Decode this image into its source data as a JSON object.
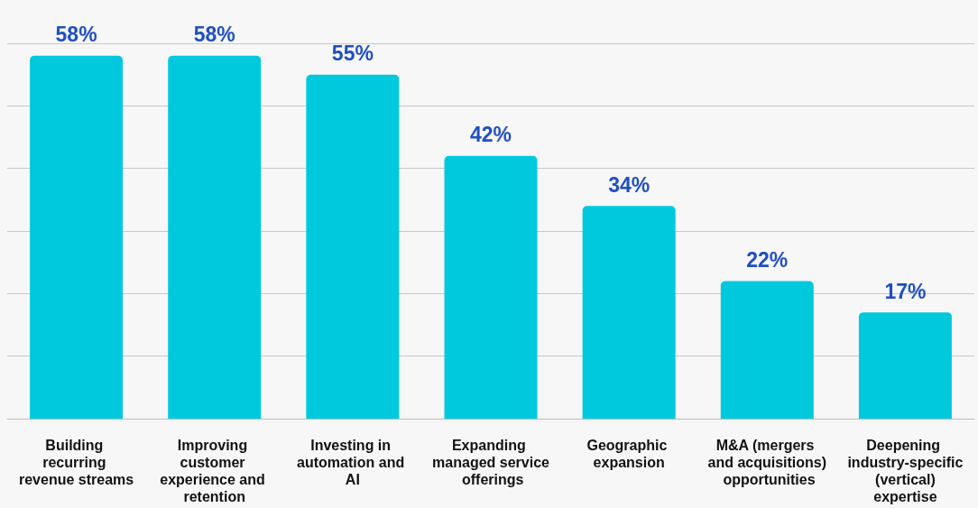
{
  "chart_data": {
    "type": "bar",
    "categories": [
      "Building recurring revenue streams",
      "Improving customer experience and retention",
      "Investing in automation and AI",
      "Expanding managed service offerings",
      "Geographic expansion",
      "M&A (mergers and acquisitions) opportunities",
      "Deepening industry-specific (vertical) expertise"
    ],
    "values": [
      58,
      58,
      55,
      42,
      34,
      22,
      17
    ],
    "value_labels": [
      "58%",
      "58%",
      "55%",
      "42%",
      "34%",
      "22%",
      "17%"
    ],
    "color": "#00c9dd",
    "ylim": [
      0,
      60
    ],
    "yticks": [
      {
        "value": 0,
        "label": null
      },
      {
        "value": 10,
        "label": null
      },
      {
        "value": 20,
        "label": null
      },
      {
        "value": 30,
        "label": null
      },
      {
        "value": 40,
        "label": null
      },
      {
        "value": 50,
        "label": null
      },
      {
        "value": 60,
        "label": null
      }
    ],
    "grid": "y",
    "tick_labels": "x"
  }
}
